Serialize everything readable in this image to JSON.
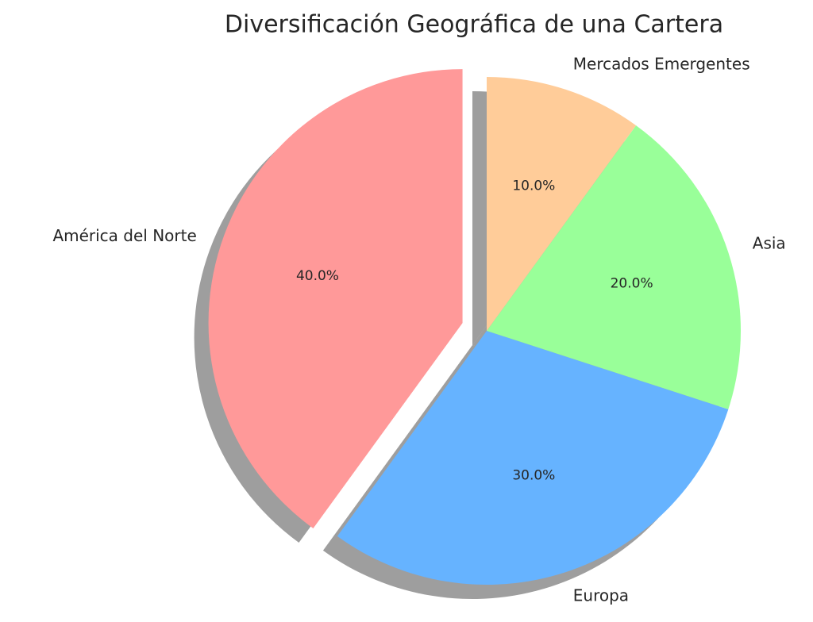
{
  "chart_data": {
    "type": "pie",
    "title": "Diversificación Geográfica de una Cartera",
    "categories": [
      "América del Norte",
      "Europa",
      "Asia",
      "Mercados Emergentes"
    ],
    "values": [
      40,
      30,
      20,
      10
    ],
    "value_labels": [
      "40.0%",
      "30.0%",
      "20.0%",
      "10.0%"
    ],
    "colors": [
      "#ff9999",
      "#66b3ff",
      "#99ff99",
      "#ffcc99"
    ],
    "explode": [
      0.1,
      0,
      0,
      0
    ],
    "start_angle": 90,
    "shadow": true
  }
}
